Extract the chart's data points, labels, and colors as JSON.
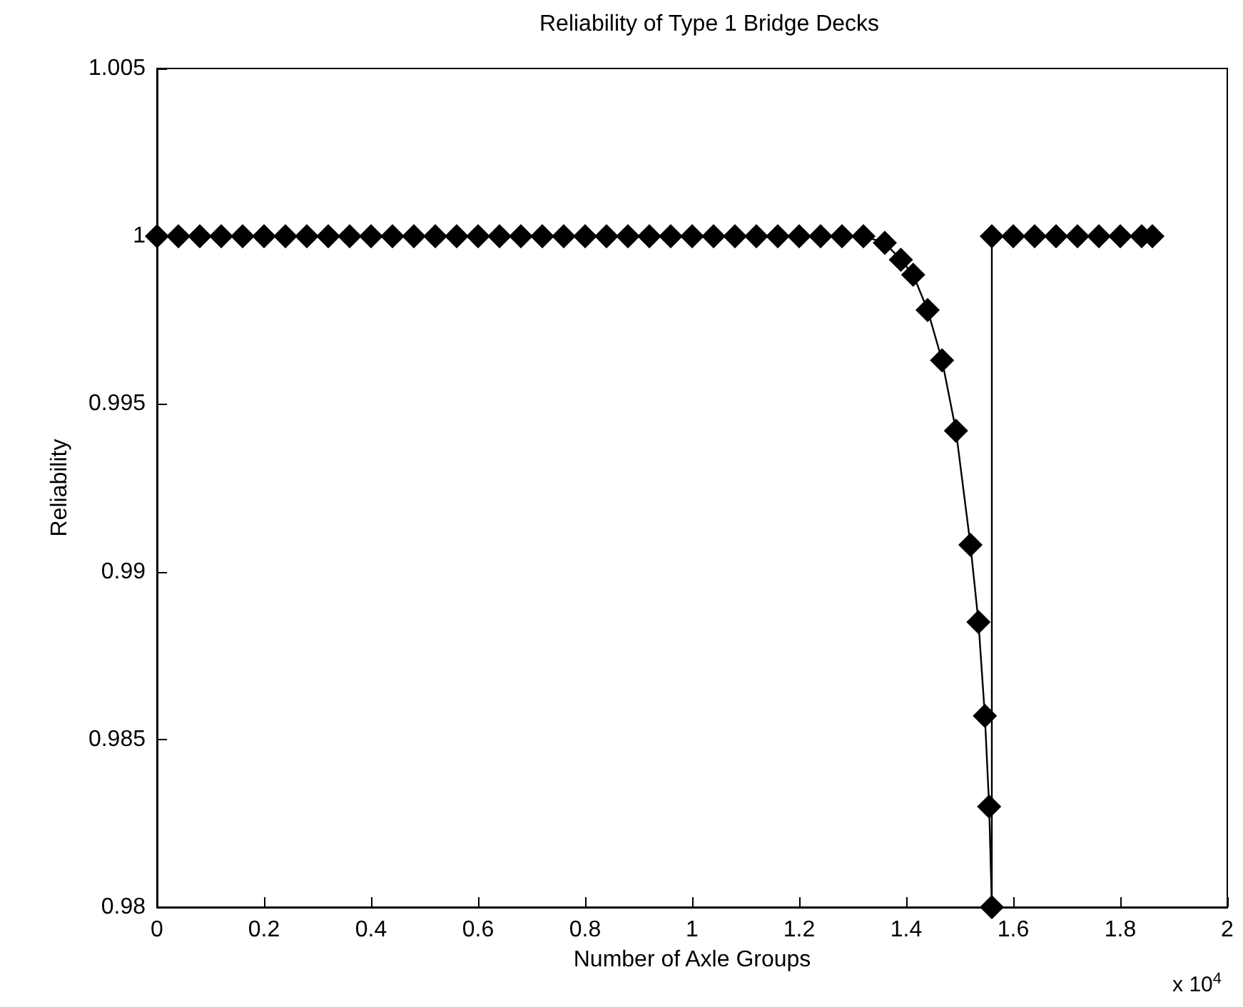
{
  "chart_data": {
    "type": "line",
    "title": "Reliability of Type 1 Bridge Decks",
    "xlabel": "Number of Axle Groups",
    "ylabel": "Reliability",
    "annotations": [
      "x 10$^{4}$"
    ],
    "x": [
      0,
      0.04,
      0.08,
      0.12,
      0.16,
      0.2,
      0.24,
      0.28,
      0.32,
      0.36,
      0.4,
      0.44,
      0.48,
      0.52,
      0.56,
      0.6,
      0.64,
      0.68,
      0.72,
      0.76,
      0.8,
      0.84,
      0.88,
      0.92,
      0.96,
      1,
      1.04,
      1.08,
      1.12,
      1.16,
      1.2,
      1.24,
      1.28,
      1.32,
      1.36,
      1.39,
      1.413,
      1.44,
      1.467,
      1.493,
      1.52,
      1.535,
      1.547,
      1.555,
      1.56,
      1.56,
      1.6,
      1.64,
      1.68,
      1.72,
      1.76,
      1.8,
      1.84,
      1.86
    ],
    "series": [
      {
        "color": "#000000",
        "values": [
          1,
          1,
          1,
          1,
          1,
          1,
          1,
          1,
          1,
          1,
          1,
          1,
          1,
          1,
          1,
          1,
          1,
          1,
          1,
          1,
          1,
          1,
          1,
          1,
          1,
          1,
          1,
          1,
          1,
          1,
          1,
          1,
          1,
          1,
          0.9998,
          0.9993,
          0.99885,
          0.9978,
          0.9963,
          0.9942,
          0.9908,
          0.9885,
          0.9857,
          0.983,
          0.98,
          1,
          1,
          1,
          1,
          1,
          1,
          1,
          1,
          1
        ]
      }
    ],
    "xlim": [
      0,
      2
    ],
    "xticks": [
      0,
      0.2,
      0.4,
      0.6,
      0.8,
      1,
      1.2,
      1.4,
      1.6,
      1.8,
      2
    ],
    "ylim": [
      0.98,
      1.005
    ],
    "yticks": [
      0.98,
      0.985,
      0.99,
      0.995,
      1,
      1.005
    ],
    "grid": false,
    "marker": "diamond",
    "line_style": "solid"
  }
}
